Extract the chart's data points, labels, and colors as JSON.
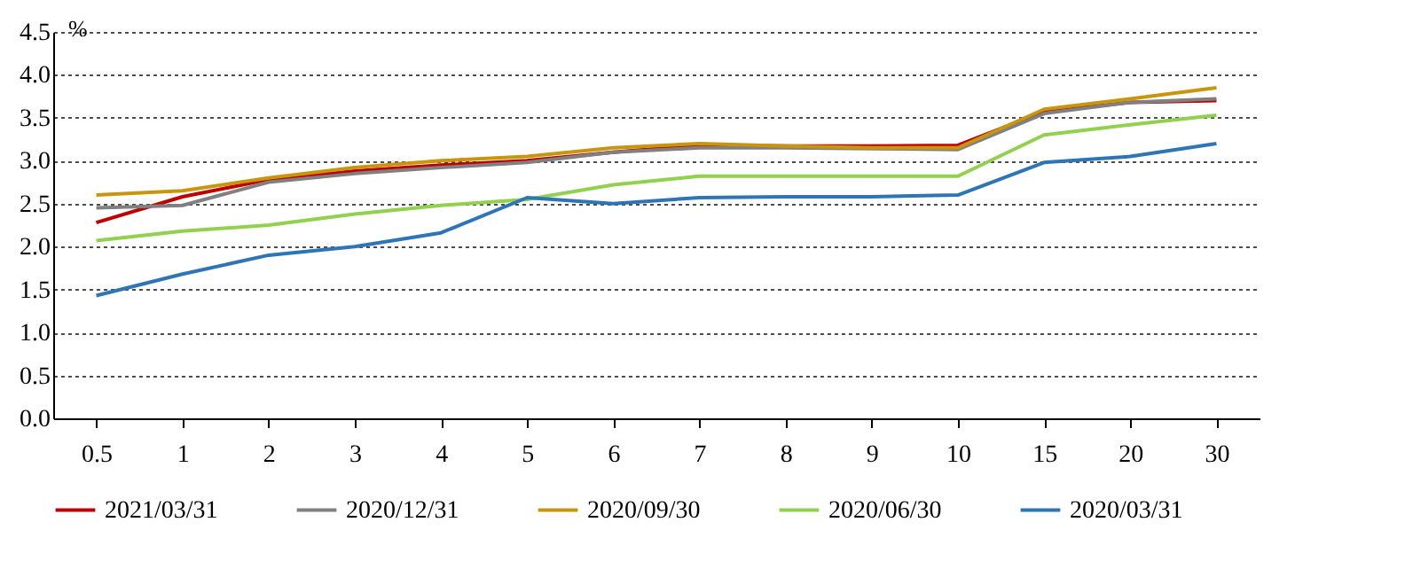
{
  "chart_data": {
    "type": "line",
    "ylabel": "%",
    "categories": [
      "0.5",
      "1",
      "2",
      "3",
      "4",
      "5",
      "6",
      "7",
      "8",
      "9",
      "10",
      "15",
      "20",
      "30"
    ],
    "series": [
      {
        "name": "2021/03/31",
        "color": "#c00000",
        "values": [
          2.28,
          2.58,
          2.78,
          2.88,
          2.95,
          3.0,
          3.1,
          3.18,
          3.17,
          3.17,
          3.18,
          3.57,
          3.68,
          3.7
        ]
      },
      {
        "name": "2020/12/31",
        "color": "#808080",
        "values": [
          2.45,
          2.48,
          2.75,
          2.85,
          2.92,
          2.98,
          3.1,
          3.15,
          3.15,
          3.14,
          3.13,
          3.55,
          3.68,
          3.72
        ]
      },
      {
        "name": "2020/09/30",
        "color": "#c8960c",
        "values": [
          2.6,
          2.65,
          2.8,
          2.92,
          3.0,
          3.05,
          3.15,
          3.2,
          3.17,
          3.15,
          3.15,
          3.6,
          3.72,
          3.85
        ]
      },
      {
        "name": "2020/06/30",
        "color": "#92d050",
        "values": [
          2.07,
          2.18,
          2.25,
          2.38,
          2.48,
          2.55,
          2.72,
          2.82,
          2.82,
          2.82,
          2.82,
          3.3,
          3.42,
          3.53
        ]
      },
      {
        "name": "2020/03/31",
        "color": "#2e75b6",
        "values": [
          1.43,
          1.68,
          1.9,
          2.0,
          2.16,
          2.57,
          2.5,
          2.57,
          2.58,
          2.58,
          2.6,
          2.98,
          3.05,
          3.2
        ]
      }
    ],
    "ylim": [
      0,
      4.5
    ],
    "yticks": [
      {
        "value": 0,
        "label": "0.0"
      },
      0.5,
      {
        "value": 1,
        "label": "1.0"
      },
      1.5,
      {
        "value": 2,
        "label": "2.0"
      },
      2.5,
      {
        "value": 3,
        "label": "3.0"
      },
      3.5,
      {
        "value": 4,
        "label": "4.0"
      },
      4.5
    ],
    "grid": "y",
    "legend": "bottom",
    "marker": "none",
    "line_style": "solid"
  }
}
